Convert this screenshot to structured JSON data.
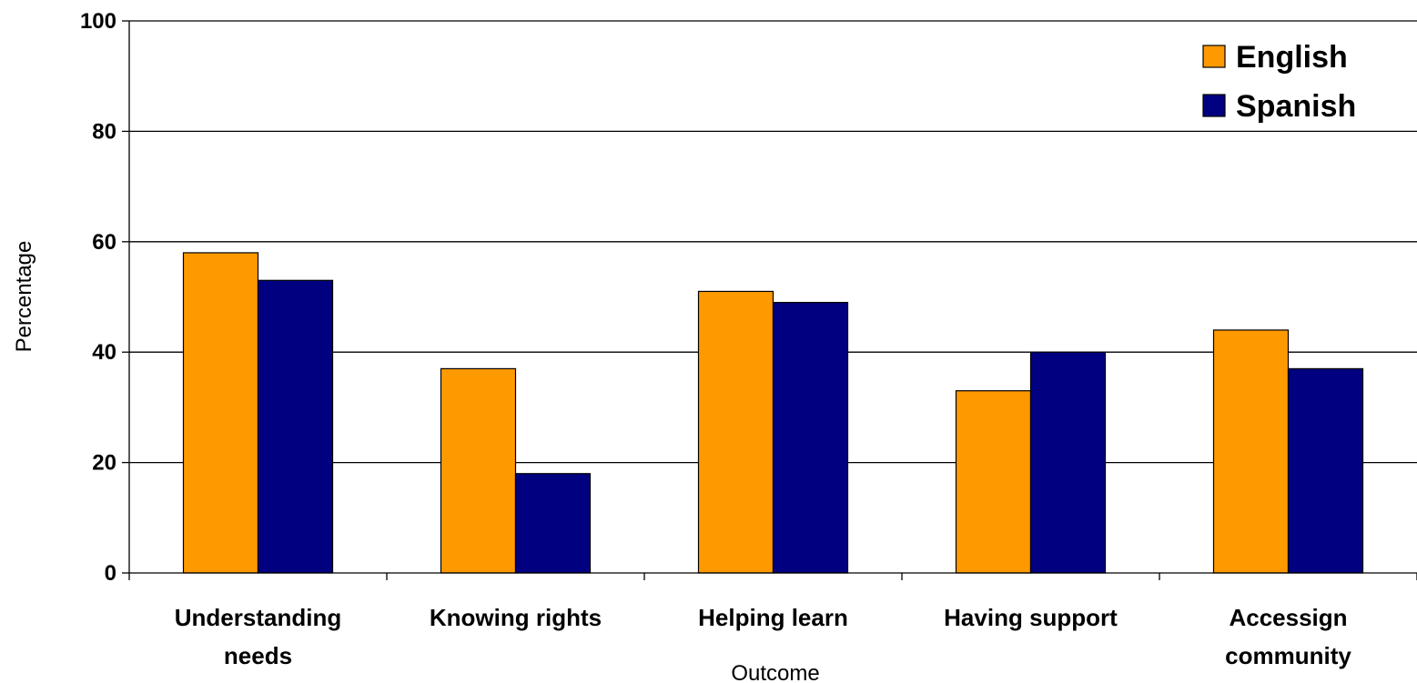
{
  "chart_data": {
    "type": "bar",
    "xlabel": "Outcome",
    "ylabel": "Percentage",
    "ylim": [
      0,
      100
    ],
    "yticks": [
      0,
      20,
      40,
      60,
      80,
      100
    ],
    "grid": true,
    "legend_position": "top-right",
    "categories": [
      [
        "Understanding",
        "needs"
      ],
      [
        "Knowing rights"
      ],
      [
        "Helping learn"
      ],
      [
        "Having support"
      ],
      [
        "Accessign",
        "community"
      ]
    ],
    "series": [
      {
        "name": "English",
        "color": "#ff9900",
        "values": [
          58,
          37,
          51,
          33,
          44
        ]
      },
      {
        "name": "Spanish",
        "color": "#000080",
        "values": [
          53,
          18,
          49,
          40,
          37
        ]
      }
    ]
  }
}
